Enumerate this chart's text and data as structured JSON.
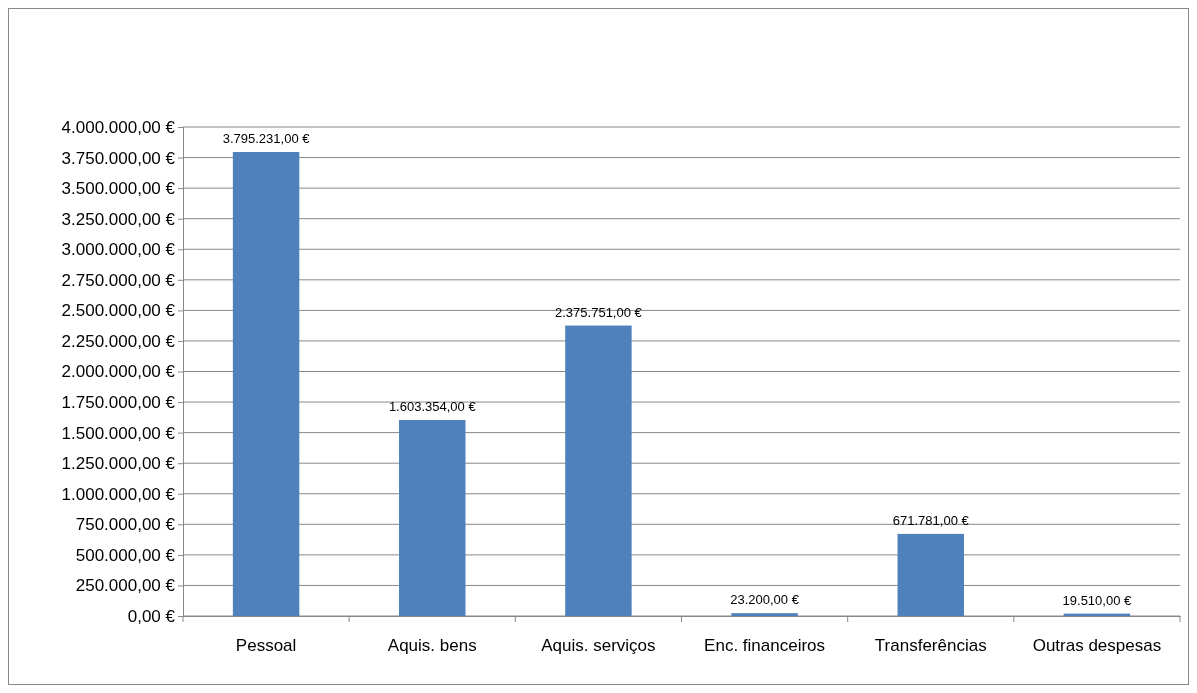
{
  "chart_data": {
    "type": "bar",
    "categories": [
      "Pessoal",
      "Aquis. bens",
      "Aquis. serviços",
      "Enc. financeiros",
      "Transferências",
      "Outras despesas"
    ],
    "values": [
      3795231,
      1603354,
      2375751,
      23200,
      671781,
      19510
    ],
    "value_labels": [
      "3.795.231,00 €",
      "1.603.354,00 €",
      "2.375.751,00 €",
      "23.200,00 €",
      "671.781,00 €",
      "19.510,00 €"
    ],
    "color": "#4f81bd",
    "ylim": [
      0,
      4000000
    ],
    "yticks": [
      {
        "value": 0,
        "label": "0,00 €"
      },
      {
        "value": 250000,
        "label": "250.000,00 €"
      },
      {
        "value": 500000,
        "label": "500.000,00 €"
      },
      {
        "value": 750000,
        "label": "750.000,00 €"
      },
      {
        "value": 1000000,
        "label": "1.000.000,00 €"
      },
      {
        "value": 1250000,
        "label": "1.250.000,00 €"
      },
      {
        "value": 1500000,
        "label": "1.500.000,00 €"
      },
      {
        "value": 1750000,
        "label": "1.750.000,00 €"
      },
      {
        "value": 2000000,
        "label": "2.000.000,00 €"
      },
      {
        "value": 2250000,
        "label": "2.250.000,00 €"
      },
      {
        "value": 2500000,
        "label": "2.500.000,00 €"
      },
      {
        "value": 2750000,
        "label": "2.750.000,00 €"
      },
      {
        "value": 3000000,
        "label": "3.000.000,00 €"
      },
      {
        "value": 3250000,
        "label": "3.250.000,00 €"
      },
      {
        "value": 3500000,
        "label": "3.500.000,00 €"
      },
      {
        "value": 3750000,
        "label": "3.750.000,00 €"
      },
      {
        "value": 4000000,
        "label": "4.000.000,00 €"
      }
    ],
    "grid": "y"
  }
}
